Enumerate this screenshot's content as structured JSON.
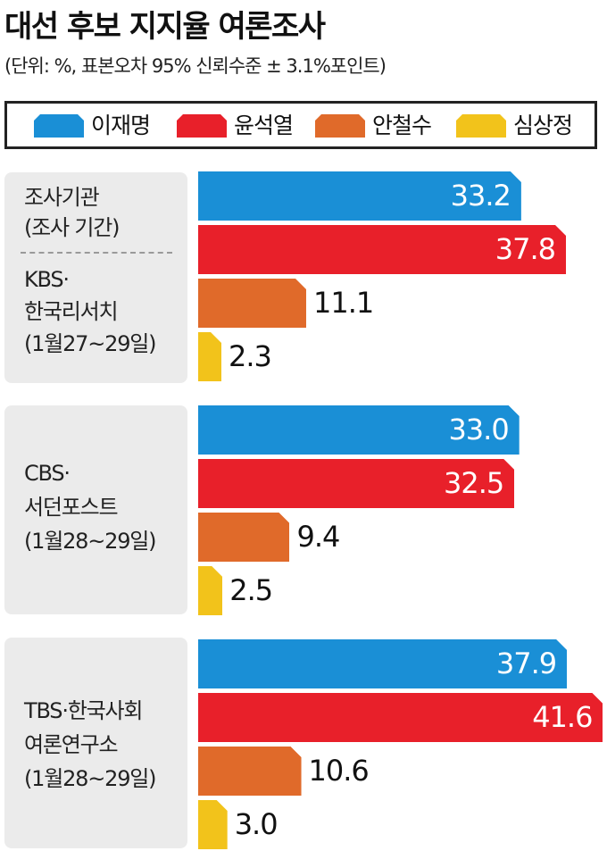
{
  "title": "대선 후보 지지율 여론조사",
  "subtitle": "(단위: %, 표본오차 95% 신뢰수준 ± 3.1%포인트)",
  "colors": {
    "lee": "#1a8fd6",
    "yoon": "#e8202a",
    "ahn": "#e06a2a",
    "sim": "#f2c31b",
    "panel_bg": "#ebebeb"
  },
  "legend": [
    {
      "label": "이재명",
      "color": "#1a8fd6"
    },
    {
      "label": "윤석열",
      "color": "#e8202a"
    },
    {
      "label": "안철수",
      "color": "#e06a2a"
    },
    {
      "label": "심상정",
      "color": "#f2c31b"
    }
  ],
  "panel_header": {
    "line1": "조사기관",
    "line2": "(조사 기간)"
  },
  "chart_data": {
    "type": "bar",
    "orientation": "horizontal",
    "series_names": [
      "이재명",
      "윤석열",
      "안철수",
      "심상정"
    ],
    "groups": [
      {
        "org_lines": [
          "KBS·",
          "한국리서치"
        ],
        "period": "(1월27~29일)",
        "values": [
          33.2,
          37.8,
          11.1,
          2.3
        ],
        "labels": [
          "33.2",
          "37.8",
          "11.1",
          "2.3"
        ]
      },
      {
        "org_lines": [
          "CBS·",
          "서던포스트"
        ],
        "period": "(1월28~29일)",
        "values": [
          33.0,
          32.5,
          9.4,
          2.5
        ],
        "labels": [
          "33.0",
          "32.5",
          "9.4",
          "2.5"
        ]
      },
      {
        "org_lines": [
          "TBS·한국사회",
          "여론연구소"
        ],
        "period": "(1월28~29일)",
        "values": [
          37.9,
          41.6,
          10.6,
          3.0
        ],
        "labels": [
          "37.9",
          "41.6",
          "10.6",
          "3.0"
        ]
      }
    ]
  }
}
